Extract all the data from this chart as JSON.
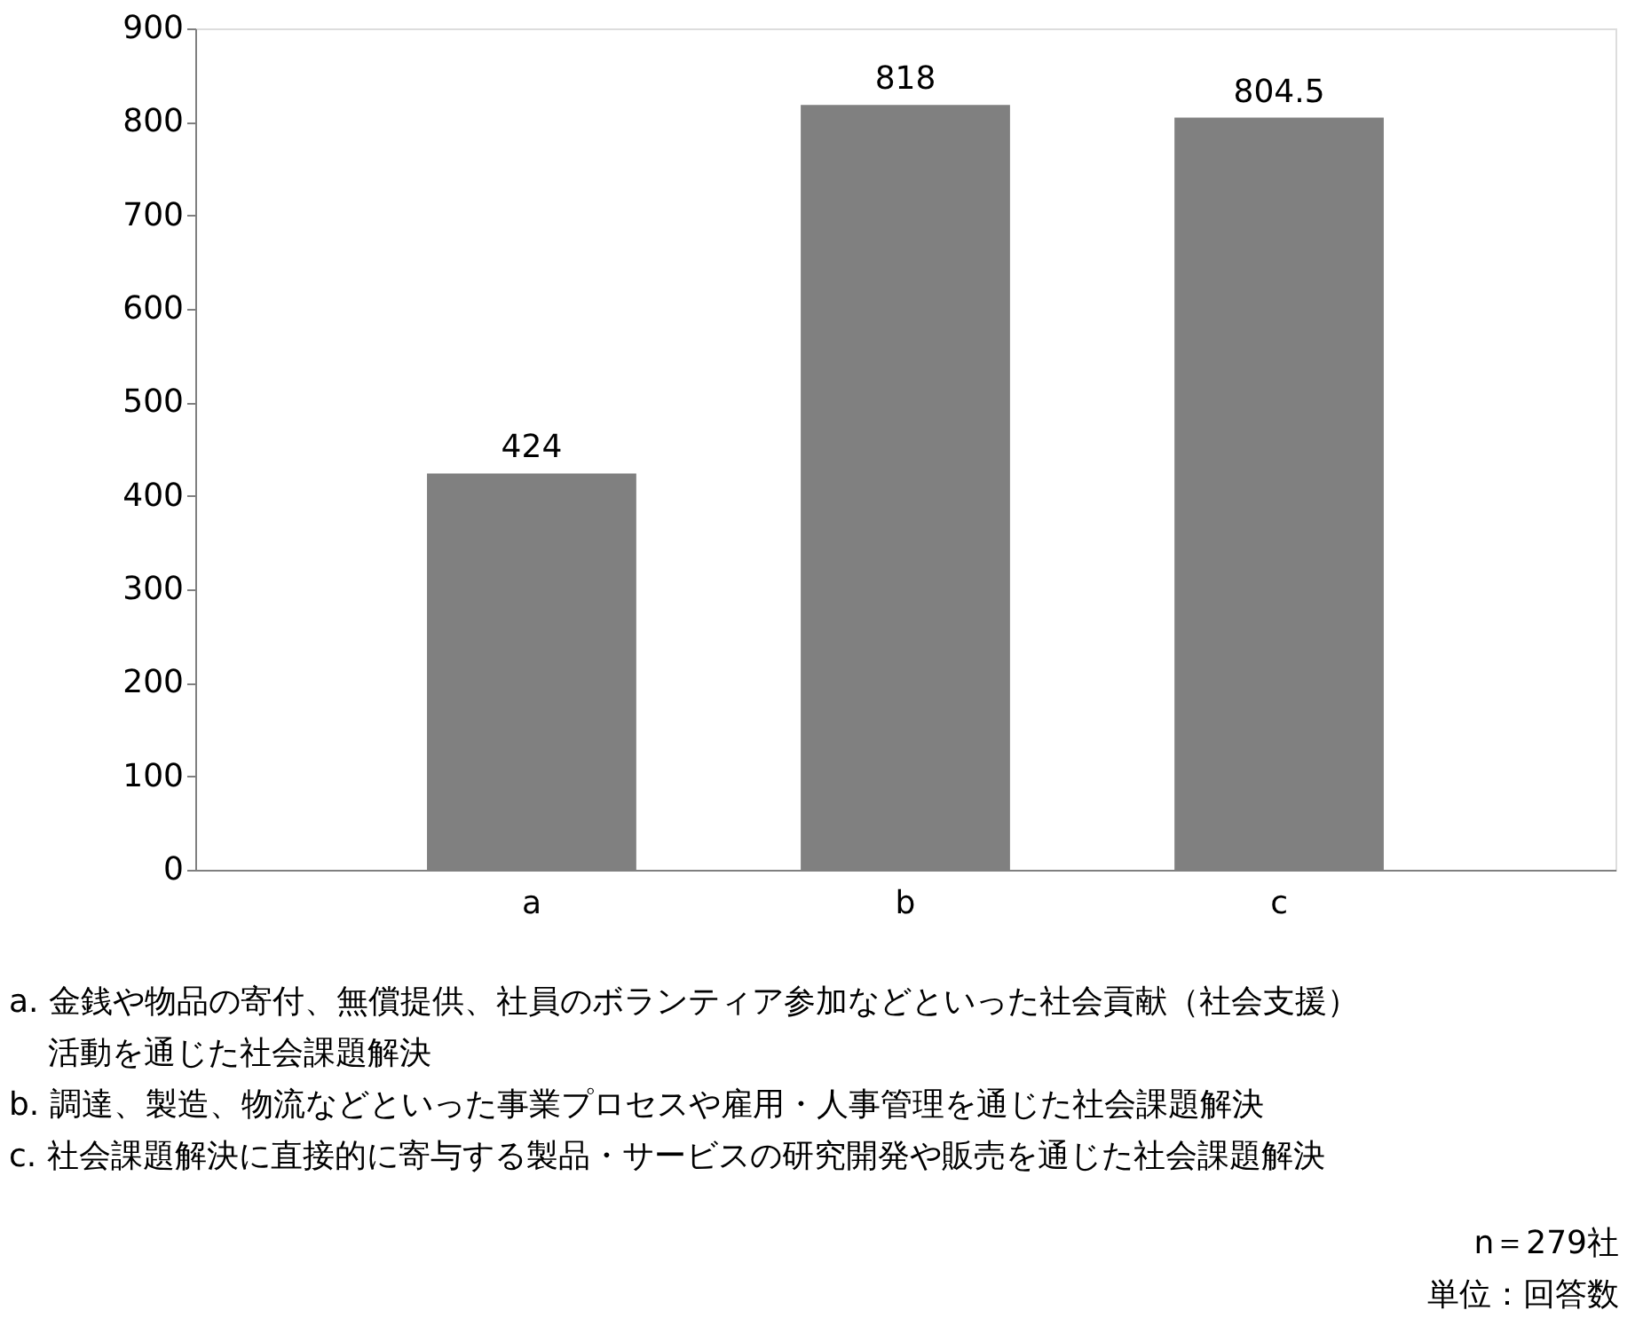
{
  "chart_data": {
    "type": "bar",
    "categories": [
      "a",
      "b",
      "c"
    ],
    "values": [
      424,
      818,
      804.5
    ],
    "color": "#808080",
    "ylim": [
      0,
      900
    ],
    "yticks": [
      0,
      100,
      200,
      300,
      400,
      500,
      600,
      700,
      800,
      900
    ],
    "grid": false,
    "data_labels": true,
    "annotations": [
      "a. 金銭や物品の寄付、無償提供、社員のボランティア参加などといった社会貢献（社会支援）活動を通じた社会課題解決",
      "b. 調達、製造、物流などといった事業プロセスや雇用・人事管理を通じた社会課題解決",
      "c. 社会課題解決に直接的に寄与する製品・サービスの研究開発や販売を通じた社会課題解決",
      "n＝279社",
      "単位：回答数"
    ]
  }
}
